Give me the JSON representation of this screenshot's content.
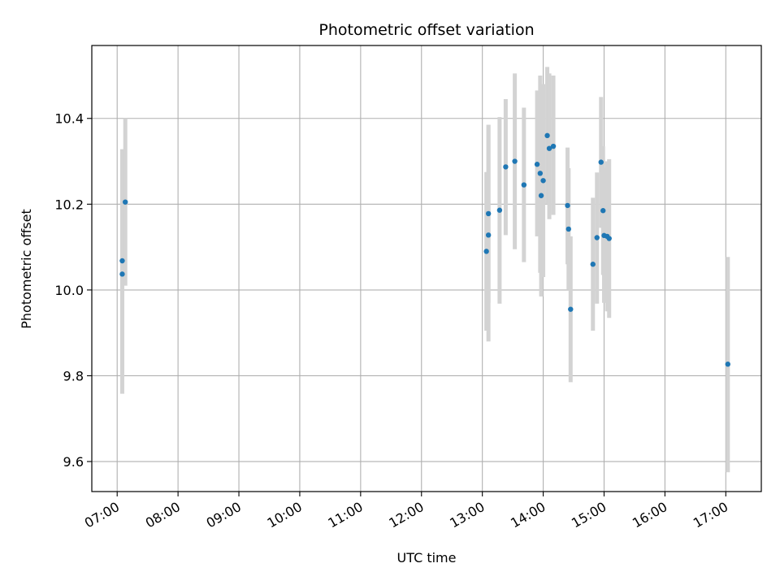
{
  "chart_data": {
    "type": "scatter",
    "title": "Photometric offset variation",
    "xlabel": "UTC time",
    "ylabel": "Photometric offset",
    "x_unit": "hours UTC",
    "xlim": [
      "06:35",
      "17:35"
    ],
    "ylim": [
      9.53,
      10.57
    ],
    "x_ticks": [
      "07:00",
      "08:00",
      "09:00",
      "10:00",
      "11:00",
      "12:00",
      "13:00",
      "14:00",
      "15:00",
      "16:00",
      "17:00"
    ],
    "y_ticks": [
      9.6,
      9.8,
      10.0,
      10.2,
      10.4
    ],
    "y_tick_labels": [
      "9.6",
      "9.8",
      "10.0",
      "10.2",
      "10.4"
    ],
    "grid": true,
    "point_color": "#1f77b4",
    "errorbar_color": "#d3d3d3",
    "points": [
      {
        "t": "07:05",
        "y": 10.037,
        "lo": 9.758,
        "hi": 10.328
      },
      {
        "t": "07:05",
        "y": 10.068,
        "lo": 9.808,
        "hi": 10.328
      },
      {
        "t": "07:08",
        "y": 10.205,
        "lo": 10.01,
        "hi": 10.4
      },
      {
        "t": "13:04",
        "y": 10.09,
        "lo": 9.905,
        "hi": 10.275
      },
      {
        "t": "13:06",
        "y": 10.128,
        "lo": 9.88,
        "hi": 10.385
      },
      {
        "t": "13:06",
        "y": 10.178,
        "lo": 9.97,
        "hi": 10.385
      },
      {
        "t": "13:17",
        "y": 10.186,
        "lo": 9.968,
        "hi": 10.403
      },
      {
        "t": "13:23",
        "y": 10.287,
        "lo": 10.128,
        "hi": 10.445
      },
      {
        "t": "13:32",
        "y": 10.3,
        "lo": 10.095,
        "hi": 10.505
      },
      {
        "t": "13:41",
        "y": 10.245,
        "lo": 10.065,
        "hi": 10.425
      },
      {
        "t": "13:54",
        "y": 10.293,
        "lo": 10.125,
        "hi": 10.465
      },
      {
        "t": "13:57",
        "y": 10.272,
        "lo": 10.04,
        "hi": 10.5
      },
      {
        "t": "13:58",
        "y": 10.22,
        "lo": 9.985,
        "hi": 10.455
      },
      {
        "t": "14:00",
        "y": 10.255,
        "lo": 10.03,
        "hi": 10.48
      },
      {
        "t": "14:04",
        "y": 10.36,
        "lo": 10.2,
        "hi": 10.52
      },
      {
        "t": "14:06",
        "y": 10.33,
        "lo": 10.165,
        "hi": 10.505
      },
      {
        "t": "14:10",
        "y": 10.335,
        "lo": 10.175,
        "hi": 10.5
      },
      {
        "t": "14:24",
        "y": 10.197,
        "lo": 10.06,
        "hi": 10.332
      },
      {
        "t": "14:25",
        "y": 10.142,
        "lo": 10.0,
        "hi": 10.284
      },
      {
        "t": "14:27",
        "y": 9.955,
        "lo": 9.785,
        "hi": 10.125
      },
      {
        "t": "14:49",
        "y": 10.06,
        "lo": 9.905,
        "hi": 10.215
      },
      {
        "t": "14:53",
        "y": 10.122,
        "lo": 9.968,
        "hi": 10.274
      },
      {
        "t": "14:57",
        "y": 10.298,
        "lo": 10.145,
        "hi": 10.45
      },
      {
        "t": "14:59",
        "y": 10.185,
        "lo": 10.035,
        "hi": 10.335
      },
      {
        "t": "15:00",
        "y": 10.127,
        "lo": 9.97,
        "hi": 10.285
      },
      {
        "t": "15:03",
        "y": 10.125,
        "lo": 9.95,
        "hi": 10.3
      },
      {
        "t": "15:05",
        "y": 10.12,
        "lo": 9.935,
        "hi": 10.305
      },
      {
        "t": "17:02",
        "y": 9.827,
        "lo": 9.575,
        "hi": 10.077
      }
    ]
  }
}
